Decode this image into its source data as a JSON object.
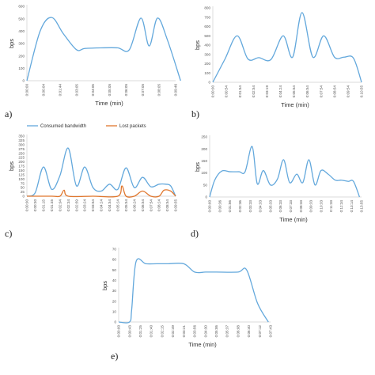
{
  "colors": {
    "series_blue": "#63a8dc",
    "series_orange": "#e0772e",
    "axis": "#cfcfcf",
    "text": "#333333"
  },
  "panel_labels": {
    "a": "a)",
    "b": "b)",
    "c": "c)",
    "d": "d)",
    "e": "e)"
  },
  "chart_data": [
    {
      "id": "a",
      "type": "line",
      "xlabel": "Time (min)",
      "ylabel": "bps",
      "ylim": [
        0,
        600
      ],
      "yticks": [
        0,
        100,
        200,
        300,
        400,
        500,
        600
      ],
      "categories": [
        "0:00:00",
        "0:00:04",
        "0:01:44",
        "0:03:05",
        "0:04:05",
        "0:05:05",
        "0:06:05",
        "0:07:05",
        "0:08:05",
        "0:09:46"
      ],
      "series": [
        {
          "color": "#63a8dc",
          "x": [
            0,
            0.8,
            1.5,
            2.2,
            3.0,
            3.5,
            4.5,
            5.5,
            6.2,
            6.9,
            7.4,
            7.9,
            8.5,
            9.3
          ],
          "values": [
            0,
            400,
            510,
            380,
            250,
            260,
            265,
            265,
            250,
            505,
            280,
            505,
            330,
            0
          ]
        }
      ]
    },
    {
      "id": "b",
      "type": "line",
      "xlabel": "Time (min)",
      "ylabel": "bps",
      "ylim": [
        0,
        800
      ],
      "yticks": [
        0,
        100,
        200,
        300,
        400,
        500,
        600,
        700,
        800
      ],
      "categories": [
        "0:00:00",
        "0:00:54",
        "0:01:54",
        "0:02:54",
        "0:03:19",
        "0:04:24",
        "0:05:54",
        "0:06:54",
        "0:07:54",
        "0:08:54",
        "0:09:54",
        "0:10:55"
      ],
      "series": [
        {
          "color": "#63a8dc",
          "x": [
            0,
            0.9,
            1.8,
            2.6,
            3.4,
            4.3,
            5.2,
            5.9,
            6.6,
            7.4,
            8.2,
            9.0,
            9.7,
            10.4,
            11.0
          ],
          "values": [
            0,
            250,
            500,
            250,
            265,
            245,
            500,
            270,
            750,
            270,
            500,
            270,
            270,
            260,
            0
          ]
        }
      ]
    },
    {
      "id": "c",
      "type": "line",
      "xlabel": "",
      "ylabel": "bps",
      "legend": [
        "Consumed bandwidth",
        "Lost packets"
      ],
      "legend_position": "top",
      "ylim": [
        0,
        350
      ],
      "yticks": [
        0,
        25,
        50,
        75,
        100,
        125,
        150,
        175,
        200,
        225,
        250,
        275,
        300,
        325,
        350
      ],
      "categories": [
        "0:00:00",
        "0:00:30",
        "0:01:15",
        "0:01:45",
        "0:02:04",
        "0:02:34",
        "0:02:59",
        "0:03:24",
        "0:03:54",
        "0:04:24",
        "0:04:54",
        "0:05:24",
        "0:05:54",
        "0:06:24",
        "0:06:54",
        "0:07:54",
        "0:08:24",
        "0:08:54",
        "0:09:55"
      ],
      "series": [
        {
          "name": "Consumed bandwidth",
          "color": "#63a8dc",
          "x": [
            0,
            1.0,
            2.0,
            3.0,
            4.0,
            5.0,
            6.0,
            7.0,
            8.0,
            9.0,
            10.0,
            11.0,
            12.0,
            13.0,
            14.0,
            15.0,
            16.0,
            16.8,
            17.4,
            18.0
          ],
          "values": [
            0,
            20,
            170,
            40,
            120,
            280,
            60,
            170,
            50,
            30,
            70,
            40,
            165,
            50,
            110,
            55,
            70,
            70,
            60,
            0
          ]
        },
        {
          "name": "Lost packets",
          "color": "#e0772e",
          "x": [
            0,
            3.0,
            4.0,
            4.5,
            5.0,
            8.0,
            11.0,
            11.5,
            12.0,
            13.0,
            14.0,
            15.0,
            16.0,
            16.6,
            17.4,
            18.0
          ],
          "values": [
            0,
            0,
            0,
            35,
            0,
            0,
            0,
            60,
            0,
            0,
            30,
            0,
            0,
            35,
            30,
            0
          ]
        }
      ]
    },
    {
      "id": "d",
      "type": "line",
      "xlabel": "Time (min)",
      "ylabel": "bps",
      "ylim": [
        0,
        250
      ],
      "yticks": [
        0,
        50,
        100,
        150,
        200,
        250
      ],
      "categories": [
        "0:00:00",
        "0:00:36",
        "0:01:56",
        "0:02:36",
        "0:03:33",
        "0:04:33",
        "0:05:33",
        "0:06:33",
        "0:07:33",
        "0:08:33",
        "0:09:33",
        "0:10:33",
        "0:11:33",
        "0:12:34",
        "0:13:14",
        "0:13:55"
      ],
      "series": [
        {
          "color": "#63a8dc",
          "x": [
            0,
            0.5,
            1.2,
            2.0,
            2.9,
            3.5,
            4.2,
            4.7,
            5.3,
            6.0,
            6.7,
            7.3,
            7.9,
            8.6,
            9.2,
            9.8,
            10.4,
            11.0,
            11.7,
            12.4,
            13.0,
            13.7,
            14.2,
            14.8
          ],
          "values": [
            0,
            70,
            108,
            105,
            105,
            105,
            210,
            55,
            110,
            50,
            75,
            155,
            60,
            95,
            60,
            155,
            50,
            110,
            95,
            70,
            70,
            65,
            65,
            0
          ]
        }
      ]
    },
    {
      "id": "e",
      "type": "line",
      "xlabel": "Time (min)",
      "ylabel": "bps",
      "ylim": [
        0,
        70
      ],
      "yticks": [
        0,
        10,
        20,
        30,
        40,
        50,
        60,
        70
      ],
      "categories": [
        "0:00:00",
        "0:00:43",
        "0:01:25",
        "0:01:40",
        "0:02:15",
        "0:02:49",
        "0:03:21",
        "0:03:56",
        "0:04:30",
        "0:05:06",
        "0:05:37",
        "0:06:08",
        "0:06:40",
        "0:07:12",
        "0:07:43"
      ],
      "series": [
        {
          "color": "#63a8dc",
          "x": [
            0,
            1.0,
            1.2,
            1.6,
            2.5,
            3.5,
            4.5,
            6.0,
            7.0,
            8.0,
            9.0,
            11.0,
            11.8,
            12.8,
            13.8
          ],
          "values": [
            0,
            0,
            12,
            58,
            56,
            56,
            56,
            56,
            48,
            48,
            48,
            48,
            50,
            18,
            0
          ]
        }
      ]
    }
  ]
}
